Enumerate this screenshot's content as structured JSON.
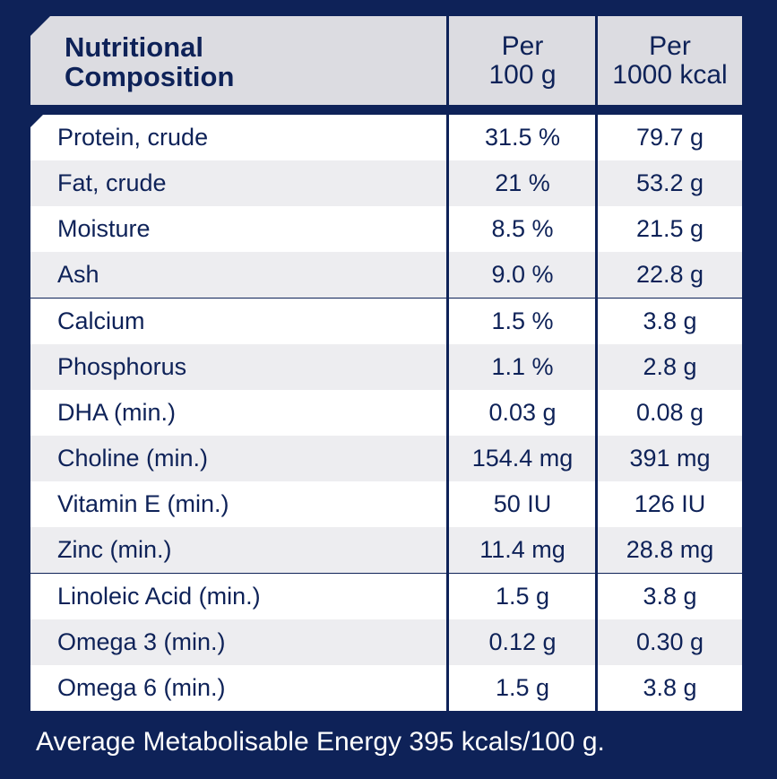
{
  "header": {
    "title_line1": "Nutritional",
    "title_line2": "Composition",
    "col1_line1": "Per",
    "col1_line2": "100 g",
    "col2_line1": "Per",
    "col2_line2": "1000 kcal"
  },
  "rows": [
    {
      "name": "Protein, crude",
      "per100g": "31.5 %",
      "per1000kcal": "79.7 g"
    },
    {
      "name": "Fat, crude",
      "per100g": "21 %",
      "per1000kcal": "53.2 g"
    },
    {
      "name": "Moisture",
      "per100g": "8.5 %",
      "per1000kcal": "21.5 g"
    },
    {
      "name": "Ash",
      "per100g": "9.0 %",
      "per1000kcal": "22.8 g"
    },
    {
      "name": "Calcium",
      "per100g": "1.5 %",
      "per1000kcal": "3.8 g"
    },
    {
      "name": "Phosphorus",
      "per100g": "1.1 %",
      "per1000kcal": "2.8 g"
    },
    {
      "name": "DHA (min.)",
      "per100g": "0.03 g",
      "per1000kcal": "0.08 g"
    },
    {
      "name": "Choline (min.)",
      "per100g": "154.4 mg",
      "per1000kcal": "391 mg"
    },
    {
      "name": "Vitamin E (min.)",
      "per100g": "50 IU",
      "per1000kcal": "126 IU"
    },
    {
      "name": "Zinc (min.)",
      "per100g": "11.4 mg",
      "per1000kcal": "28.8 mg"
    },
    {
      "name": "Linoleic Acid (min.)",
      "per100g": "1.5 g",
      "per1000kcal": "3.8 g"
    },
    {
      "name": "Omega 3 (min.)",
      "per100g": "0.12 g",
      "per1000kcal": "0.30 g"
    },
    {
      "name": "Omega 6 (min.)",
      "per100g": "1.5 g",
      "per1000kcal": "3.8 g"
    }
  ],
  "footer": "Average Metabolisable Energy 395 kcals/100 g.",
  "colors": {
    "background": "#0e2258",
    "header_bg": "#dcdce1",
    "row_alt": "#ededf0",
    "row": "#ffffff"
  }
}
